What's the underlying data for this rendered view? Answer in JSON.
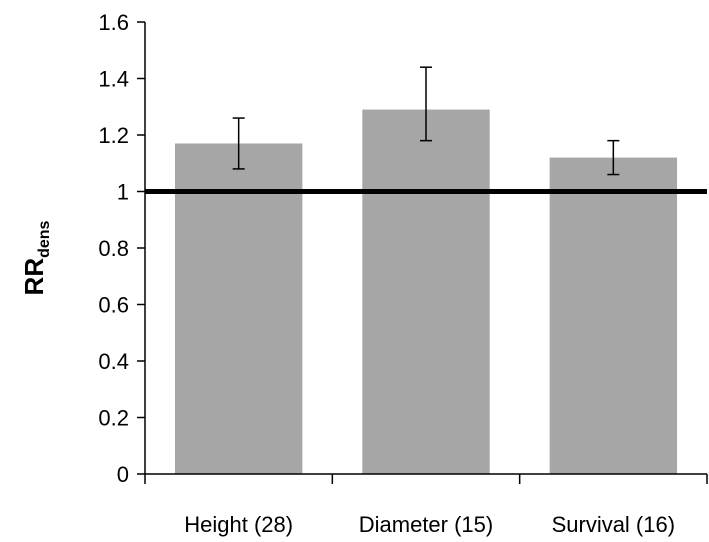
{
  "chart_data": {
    "type": "bar",
    "title": "",
    "xlabel": "",
    "ylabel": "RR",
    "ylabel_subscript": "dens",
    "categories": [
      "Height (28)",
      "Diameter (15)",
      "Survival (16)"
    ],
    "values": [
      1.17,
      1.29,
      1.12
    ],
    "error_low": [
      1.08,
      1.18,
      1.06
    ],
    "error_high": [
      1.26,
      1.44,
      1.18
    ],
    "ylim": [
      0,
      1.6
    ],
    "yticks": [
      0,
      0.2,
      0.4,
      0.6,
      0.8,
      1,
      1.2,
      1.4,
      1.6
    ],
    "ytick_labels": [
      "0",
      "0.2",
      "0.4",
      "0.6",
      "0.8",
      "1",
      "1.2",
      "1.4",
      "1.6"
    ],
    "reference_line": 1,
    "grid": false,
    "legend": "none",
    "colors": {
      "bar": "#a6a6a6",
      "axis": "#000000",
      "reference_line": "#000000"
    }
  }
}
